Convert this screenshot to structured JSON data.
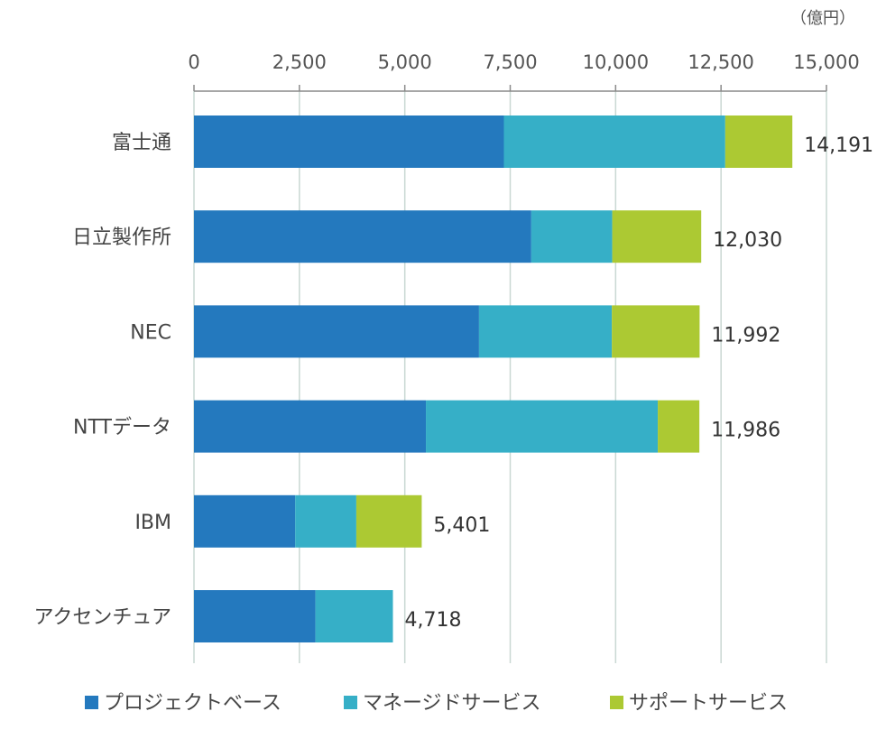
{
  "chart_data": {
    "type": "bar",
    "orientation": "horizontal",
    "stacked": true,
    "unit": "（億円）",
    "categories": [
      "富士通",
      "日立製作所",
      "NEC",
      "NTTデータ",
      "IBM",
      "アクセンチュア"
    ],
    "series": [
      {
        "name": "プロジェクトベース",
        "color": "#2479be",
        "values": [
          7350,
          8000,
          6760,
          5500,
          2400,
          2880
        ]
      },
      {
        "name": "マネージドサービス",
        "color": "#36afc7",
        "values": [
          5250,
          1920,
          3150,
          5500,
          1450,
          1838
        ]
      },
      {
        "name": "サポートサービス",
        "color": "#acc933",
        "values": [
          1591,
          2110,
          2082,
          986,
          1551,
          0
        ]
      }
    ],
    "totals": [
      14191,
      12030,
      11992,
      11986,
      5401,
      4718
    ],
    "total_labels": [
      "14,191",
      "12,030",
      "11,992",
      "11,986",
      "5,401",
      "4,718"
    ],
    "xlim": [
      0,
      15000
    ],
    "xticks": [
      0,
      2500,
      5000,
      7500,
      10000,
      12500,
      15000
    ],
    "xtick_labels": [
      "0",
      "2,500",
      "5,000",
      "7,500",
      "10,000",
      "12,500",
      "15,000"
    ],
    "xaxis_position": "top",
    "grid": true,
    "legend_position": "bottom"
  }
}
